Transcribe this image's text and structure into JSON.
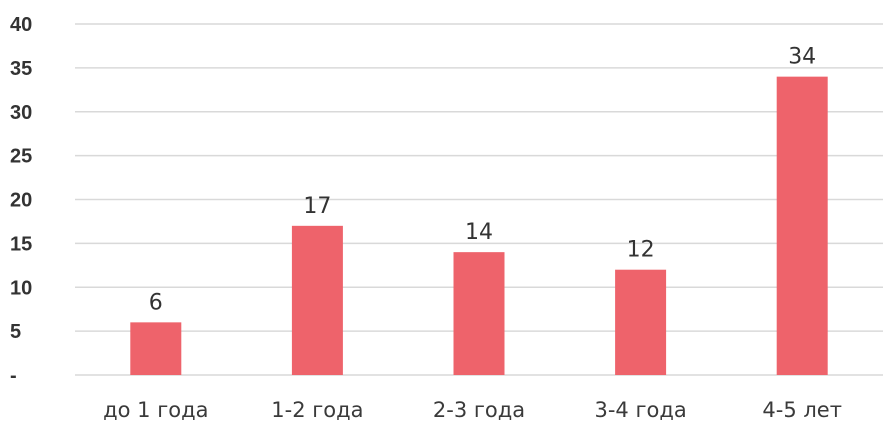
{
  "chart_data": {
    "type": "bar",
    "title": "",
    "xlabel": "",
    "ylabel": "",
    "categories": [
      "до 1 года",
      "1-2 года",
      "2-3 года",
      "3-4 года",
      "4-5 лет"
    ],
    "values": [
      6,
      17,
      14,
      12,
      34
    ],
    "ylim": [
      0,
      40
    ],
    "y_ticks": [
      0,
      5,
      10,
      15,
      20,
      25,
      30,
      35,
      40
    ],
    "y_tick_labels": [
      "-",
      "5",
      "10",
      "15",
      "20",
      "25",
      "30",
      "35",
      "40"
    ],
    "data_labels": [
      "6",
      "17",
      "14",
      "12",
      "34"
    ],
    "grid": true,
    "legend": "none",
    "bar_color": "#ee636b"
  }
}
